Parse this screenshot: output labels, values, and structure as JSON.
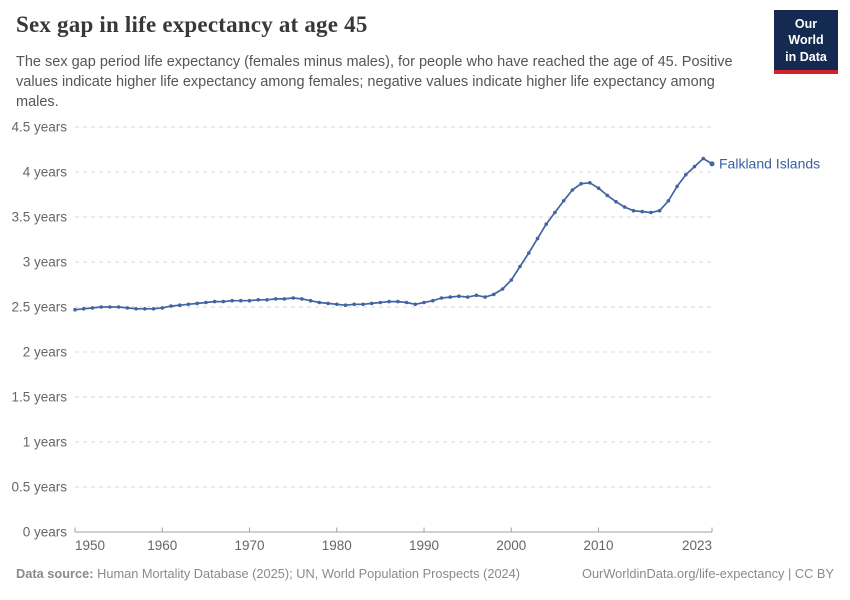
{
  "header": {
    "title": "Sex gap in life expectancy at age 45",
    "subtitle": "The sex gap period life expectancy (females minus males), for people who have reached the age of 45. Positive values indicate higher life expectancy among females; negative values indicate higher life expectancy among males.",
    "logo": {
      "line1": "Our World",
      "line2": "in Data"
    }
  },
  "footer": {
    "datasource_label": "Data source:",
    "datasource_value": " Human Mortality Database (2025); UN, World Population Prospects (2024)",
    "link_text": "OurWorldinData.org/life-expectancy | CC BY"
  },
  "colors": {
    "line": "#4264a3",
    "series_label": "#3d619f",
    "grid": "#dadada",
    "axis": "#a0a0a0",
    "tick_text": "#666666",
    "logo_bg": "#142a50",
    "logo_bar": "#d2232a"
  },
  "chart_data": {
    "type": "line",
    "title": "Sex gap in life expectancy at age 45",
    "xlabel": "",
    "ylabel": "years",
    "grid": "horizontal-dashed",
    "legend_position": "end-of-line",
    "xlim": [
      1950,
      2023
    ],
    "ylim": [
      0,
      4.5
    ],
    "xticks": [
      1950,
      1960,
      1970,
      1980,
      1990,
      2000,
      2010,
      2023
    ],
    "yticks": [
      0,
      0.5,
      1,
      1.5,
      2,
      2.5,
      3,
      3.5,
      4,
      4.5
    ],
    "ytick_labels": [
      "0 years",
      "0.5 years",
      "1 years",
      "1.5 years",
      "2 years",
      "2.5 years",
      "3 years",
      "3.5 years",
      "4 years",
      "4.5 years"
    ],
    "series": [
      {
        "name": "Falkland Islands",
        "x": [
          1950,
          1951,
          1952,
          1953,
          1954,
          1955,
          1956,
          1957,
          1958,
          1959,
          1960,
          1961,
          1962,
          1963,
          1964,
          1965,
          1966,
          1967,
          1968,
          1969,
          1970,
          1971,
          1972,
          1973,
          1974,
          1975,
          1976,
          1977,
          1978,
          1979,
          1980,
          1981,
          1982,
          1983,
          1984,
          1985,
          1986,
          1987,
          1988,
          1989,
          1990,
          1991,
          1992,
          1993,
          1994,
          1995,
          1996,
          1997,
          1998,
          1999,
          2000,
          2001,
          2002,
          2003,
          2004,
          2005,
          2006,
          2007,
          2008,
          2009,
          2010,
          2011,
          2012,
          2013,
          2014,
          2015,
          2016,
          2017,
          2018,
          2019,
          2020,
          2021,
          2022,
          2023
        ],
        "values": [
          2.47,
          2.48,
          2.49,
          2.5,
          2.5,
          2.5,
          2.49,
          2.48,
          2.48,
          2.48,
          2.49,
          2.51,
          2.52,
          2.53,
          2.54,
          2.55,
          2.56,
          2.56,
          2.57,
          2.57,
          2.57,
          2.58,
          2.58,
          2.59,
          2.59,
          2.6,
          2.59,
          2.57,
          2.55,
          2.54,
          2.53,
          2.52,
          2.53,
          2.53,
          2.54,
          2.55,
          2.56,
          2.56,
          2.55,
          2.53,
          2.55,
          2.57,
          2.6,
          2.61,
          2.62,
          2.61,
          2.63,
          2.61,
          2.64,
          2.7,
          2.8,
          2.95,
          3.1,
          3.26,
          3.42,
          3.55,
          3.68,
          3.8,
          3.87,
          3.88,
          3.82,
          3.74,
          3.67,
          3.61,
          3.57,
          3.56,
          3.55,
          3.57,
          3.68,
          3.84,
          3.97,
          4.06,
          4.15,
          4.09
        ]
      }
    ]
  }
}
